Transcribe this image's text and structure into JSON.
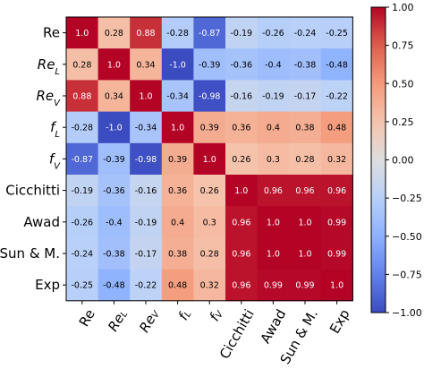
{
  "chart_data": {
    "type": "heatmap",
    "title": "",
    "labels": [
      {
        "main": "Re",
        "sub": "",
        "italic": false
      },
      {
        "main": "Re",
        "sub": "L",
        "italic": true
      },
      {
        "main": "Re",
        "sub": "V",
        "italic": true
      },
      {
        "main": "f",
        "sub": "L",
        "italic": true
      },
      {
        "main": "f",
        "sub": "V",
        "italic": true
      },
      {
        "main": "Cicchitti",
        "sub": "",
        "italic": false
      },
      {
        "main": "Awad",
        "sub": "",
        "italic": false
      },
      {
        "main": "Sun & M.",
        "sub": "",
        "italic": false
      },
      {
        "main": "Exp",
        "sub": "",
        "italic": false
      }
    ],
    "matrix": [
      [
        1.0,
        0.28,
        0.88,
        -0.28,
        -0.87,
        -0.19,
        -0.26,
        -0.24,
        -0.25
      ],
      [
        0.28,
        1.0,
        0.34,
        -1.0,
        -0.39,
        -0.36,
        -0.4,
        -0.38,
        -0.48
      ],
      [
        0.88,
        0.34,
        1.0,
        -0.34,
        -0.98,
        -0.16,
        -0.19,
        -0.17,
        -0.22
      ],
      [
        -0.28,
        -1.0,
        -0.34,
        1.0,
        0.39,
        0.36,
        0.4,
        0.38,
        0.48
      ],
      [
        -0.87,
        -0.39,
        -0.98,
        0.39,
        1.0,
        0.26,
        0.3,
        0.28,
        0.32
      ],
      [
        -0.19,
        -0.36,
        -0.16,
        0.36,
        0.26,
        1.0,
        0.96,
        0.96,
        0.96
      ],
      [
        -0.26,
        -0.4,
        -0.19,
        0.4,
        0.3,
        0.96,
        1.0,
        1.0,
        0.99
      ],
      [
        -0.24,
        -0.38,
        -0.17,
        0.38,
        0.28,
        0.96,
        1.0,
        1.0,
        0.99
      ],
      [
        -0.25,
        -0.48,
        -0.22,
        0.48,
        0.32,
        0.96,
        0.99,
        0.99,
        1.0
      ]
    ],
    "cell_labels": [
      [
        "1.0",
        "0.28",
        "0.88",
        "-0.28",
        "-0.87",
        "-0.19",
        "-0.26",
        "-0.24",
        "-0.25"
      ],
      [
        "0.28",
        "1.0",
        "0.34",
        "-1.0",
        "-0.39",
        "-0.36",
        "-0.4",
        "-0.38",
        "-0.48"
      ],
      [
        "0.88",
        "0.34",
        "1.0",
        "-0.34",
        "-0.98",
        "-0.16",
        "-0.19",
        "-0.17",
        "-0.22"
      ],
      [
        "-0.28",
        "-1.0",
        "-0.34",
        "1.0",
        "0.39",
        "0.36",
        "0.4",
        "0.38",
        "0.48"
      ],
      [
        "-0.87",
        "-0.39",
        "-0.98",
        "0.39",
        "1.0",
        "0.26",
        "0.3",
        "0.28",
        "0.32"
      ],
      [
        "-0.19",
        "-0.36",
        "-0.16",
        "0.36",
        "0.26",
        "1.0",
        "0.96",
        "0.96",
        "0.96"
      ],
      [
        "-0.26",
        "-0.4",
        "-0.19",
        "0.4",
        "0.3",
        "0.96",
        "1.0",
        "1.0",
        "0.99"
      ],
      [
        "-0.24",
        "-0.38",
        "-0.17",
        "0.38",
        "0.28",
        "0.96",
        "1.0",
        "1.0",
        "0.99"
      ],
      [
        "-0.25",
        "-0.48",
        "-0.22",
        "0.48",
        "0.32",
        "0.96",
        "0.99",
        "0.99",
        "1.0"
      ]
    ],
    "colormap": "coolwarm",
    "vmin": -1.0,
    "vmax": 1.0,
    "colorbar": {
      "ticks": [
        1.0,
        0.75,
        0.5,
        0.25,
        0.0,
        -0.25,
        -0.5,
        -0.75,
        -1.0
      ],
      "tick_labels": [
        "1.00",
        "0.75",
        "0.50",
        "0.25",
        "0.00",
        "−0.25",
        "−0.50",
        "−0.75",
        "−1.00"
      ]
    },
    "x_tick_rotation_deg": 60,
    "grid": false
  }
}
